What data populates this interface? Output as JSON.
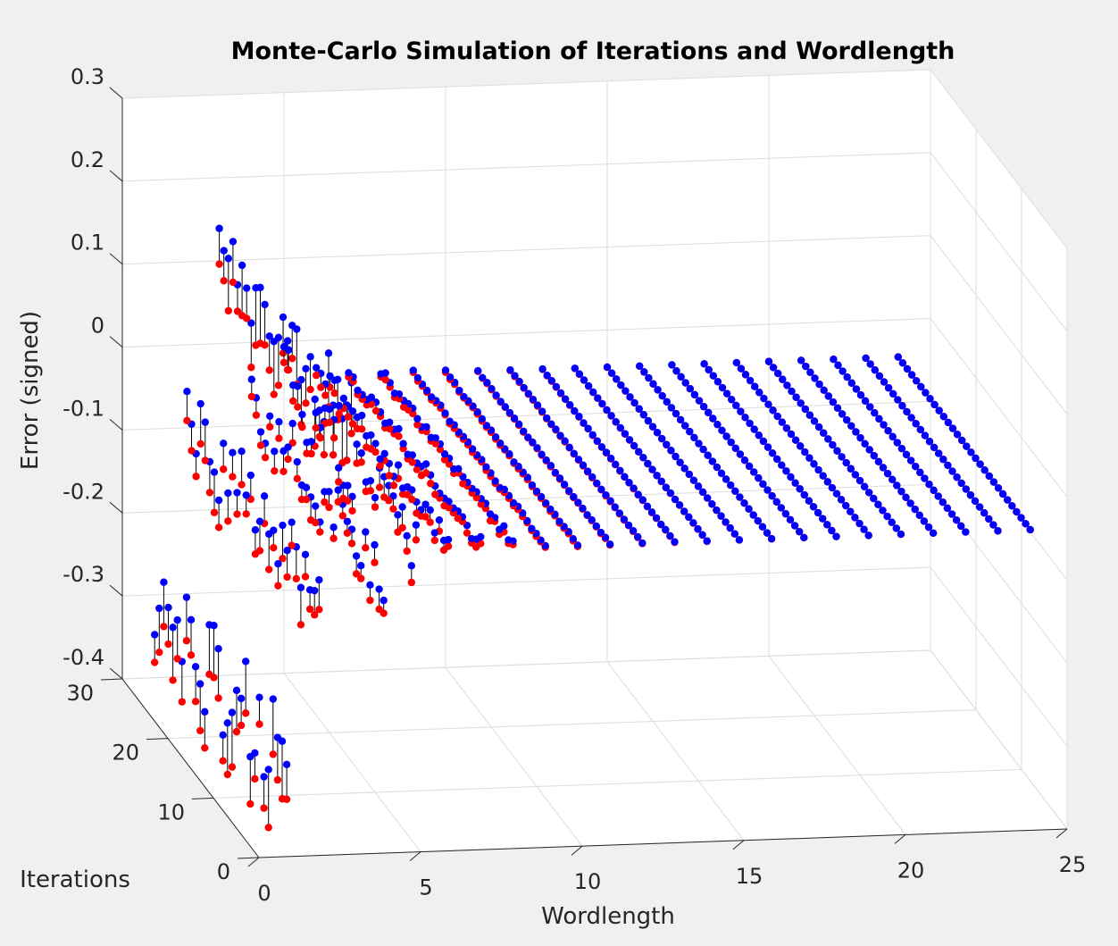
{
  "chart_data": {
    "type": "scatter",
    "title": "Monte-Carlo Simulation of Iterations and Wordlength",
    "xlabel": "Wordlength",
    "ylabel": "Iterations",
    "zlabel": "Error (signed)",
    "xlim": [
      0,
      25
    ],
    "ylim": [
      0,
      30
    ],
    "zlim": [
      -0.4,
      0.3
    ],
    "xticks": [
      "0",
      "5",
      "10",
      "15",
      "20",
      "25"
    ],
    "yticks": [
      "0",
      "10",
      "20",
      "30"
    ],
    "zticks": [
      "0.3",
      "0.2",
      "0.1",
      "0",
      "-0.1",
      "-0.2",
      "-0.3",
      "-0.4"
    ],
    "grid": true,
    "colors": {
      "upper": "#0000ff",
      "lower": "#ff0000",
      "stem": "#000000"
    },
    "description": "",
    "groups": [
      {
        "wordlength": 1,
        "z_base": -0.35,
        "spread": 0.12,
        "gap": 0.05
      },
      {
        "wordlength": 2,
        "z_base": -0.12,
        "spread": 0.1,
        "gap": 0.035
      },
      {
        "wordlength": 3,
        "z_base": 0.06,
        "spread": 0.09,
        "gap": 0.05
      },
      {
        "wordlength": 4,
        "z_base": -0.09,
        "spread": 0.07,
        "gap": 0.02
      },
      {
        "wordlength": 5,
        "z_base": -0.06,
        "spread": 0.08,
        "gap": 0.018
      },
      {
        "wordlength": 6,
        "z_base": -0.045,
        "spread": 0.02,
        "gap": 0.012
      },
      {
        "wordlength": 7,
        "z_base": -0.045,
        "spread": 0.015,
        "gap": 0.008
      },
      {
        "wordlength": 8,
        "z_base": -0.045,
        "spread": 0.01,
        "gap": 0.006
      },
      {
        "wordlength": 9,
        "z_base": -0.045,
        "spread": 0.005,
        "gap": 0.003
      },
      {
        "wordlength": 10,
        "z_base": -0.045,
        "spread": 0.003,
        "gap": 0.002
      },
      {
        "wordlength": 11,
        "z_base": -0.045,
        "spread": 0.002,
        "gap": 0.001
      },
      {
        "wordlength": 12,
        "z_base": -0.045,
        "spread": 0.001,
        "gap": 0.0008
      },
      {
        "wordlength": 13,
        "z_base": -0.045,
        "spread": 0.0008,
        "gap": 0.0005
      },
      {
        "wordlength": 14,
        "z_base": -0.045,
        "spread": 0.0005,
        "gap": 0.0003
      },
      {
        "wordlength": 15,
        "z_base": -0.045,
        "spread": 0.0003,
        "gap": 0.0002
      },
      {
        "wordlength": 16,
        "z_base": -0.045,
        "spread": 0.0002,
        "gap": 0.0001
      },
      {
        "wordlength": 17,
        "z_base": -0.045,
        "spread": 0.0001,
        "gap": 0.0001
      },
      {
        "wordlength": 18,
        "z_base": -0.045,
        "spread": 0.0001,
        "gap": 0.0
      },
      {
        "wordlength": 19,
        "z_base": -0.045,
        "spread": 0.0,
        "gap": 0.0
      },
      {
        "wordlength": 20,
        "z_base": -0.045,
        "spread": 0.0,
        "gap": 0.0
      },
      {
        "wordlength": 21,
        "z_base": -0.045,
        "spread": 0.0,
        "gap": 0.0
      },
      {
        "wordlength": 22,
        "z_base": -0.045,
        "spread": 0.0,
        "gap": 0.0
      },
      {
        "wordlength": 23,
        "z_base": -0.045,
        "spread": 0.0,
        "gap": 0.0
      },
      {
        "wordlength": 24,
        "z_base": -0.045,
        "spread": 0.0,
        "gap": 0.0
      }
    ]
  }
}
